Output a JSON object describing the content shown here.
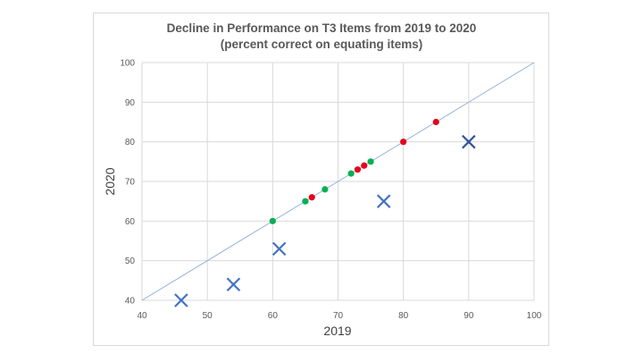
{
  "chart_data": {
    "type": "scatter",
    "title": "Decline in Performance on T3 Items from 2019 to 2020",
    "subtitle": "(percent correct on equating items)",
    "xlabel": "2019",
    "ylabel": "2020",
    "xlim": [
      40,
      100
    ],
    "ylim": [
      40,
      100
    ],
    "xticks": [
      "40",
      "50",
      "60",
      "70",
      "80",
      "90",
      "100"
    ],
    "yticks": [
      "40",
      "50",
      "60",
      "70",
      "80",
      "90",
      "100"
    ],
    "grid": true,
    "legend": "none",
    "reference_line": {
      "x": [
        40,
        100
      ],
      "y": [
        40,
        100
      ],
      "color": "#8faadc"
    },
    "series": [
      {
        "marker": "dot",
        "color": "#00b050",
        "points": [
          [
            60,
            60
          ],
          [
            65,
            65
          ],
          [
            68,
            68
          ],
          [
            72,
            72
          ],
          [
            75,
            75
          ]
        ]
      },
      {
        "marker": "dot",
        "color": "#e8001c",
        "points": [
          [
            66,
            66
          ],
          [
            73,
            73
          ],
          [
            74,
            74
          ],
          [
            80,
            80
          ],
          [
            85,
            85
          ]
        ]
      },
      {
        "marker": "cross",
        "color": "#4472c4",
        "points": [
          [
            46,
            40
          ],
          [
            54,
            44
          ],
          [
            61,
            53
          ],
          [
            77,
            65
          ]
        ]
      },
      {
        "marker": "cross",
        "color": "#2f5597",
        "points": [
          [
            90,
            80
          ]
        ]
      }
    ]
  }
}
